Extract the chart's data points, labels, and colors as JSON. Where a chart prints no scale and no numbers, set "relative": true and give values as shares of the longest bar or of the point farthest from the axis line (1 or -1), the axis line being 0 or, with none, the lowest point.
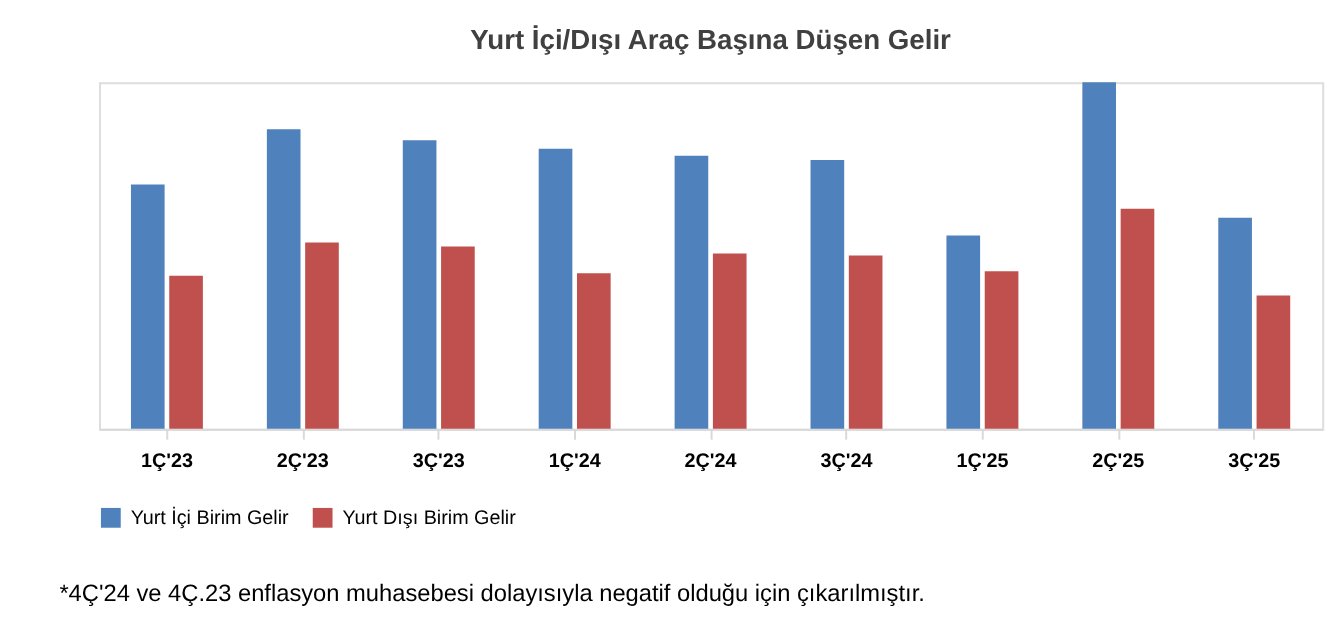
{
  "chart_data": {
    "type": "bar",
    "title": "Yurt İçi/Dışı Araç Başına Düşen Gelir",
    "relative": true,
    "categories": [
      "1Ç'23",
      "2Ç'23",
      "3Ç'23",
      "1Ç'24",
      "2Ç'24",
      "3Ç'24",
      "1Ç'25",
      "2Ç'25",
      "3Ç'25"
    ],
    "series": [
      {
        "name": "Yurt İçi Birim Gelir",
        "color": "#4f81bd",
        "values": [
          0.705,
          0.865,
          0.833,
          0.808,
          0.788,
          0.776,
          0.558,
          1,
          0.609
        ]
      },
      {
        "name": "Yurt Dışı Birim Gelir",
        "color": "#c0504d",
        "values": [
          0.442,
          0.538,
          0.526,
          0.449,
          0.506,
          0.5,
          0.455,
          0.635,
          0.385
        ]
      }
    ],
    "legend": "bottom",
    "grid": false,
    "annotations": [
      "*4Ç'24 ve 4Ç.23 enflasyon muhasebesi dolayısıyla negatif olduğu için çıkarılmıştır."
    ]
  }
}
